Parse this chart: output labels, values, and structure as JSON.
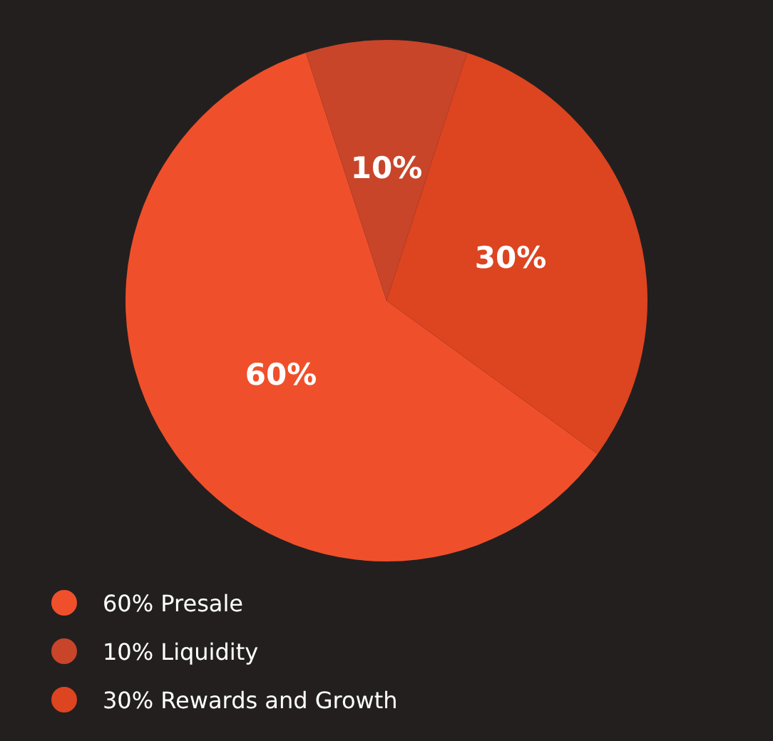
{
  "chart_data": {
    "type": "pie",
    "categories": [
      "60% Presale",
      "10% Liquidity",
      "30% Rewards and Growth"
    ],
    "values": [
      60,
      10,
      30
    ],
    "colors": [
      "#ef502b",
      "#c8452a",
      "#dd4420"
    ],
    "value_labels": [
      "60%",
      "10%",
      "30%"
    ],
    "legend": "bottom left"
  }
}
